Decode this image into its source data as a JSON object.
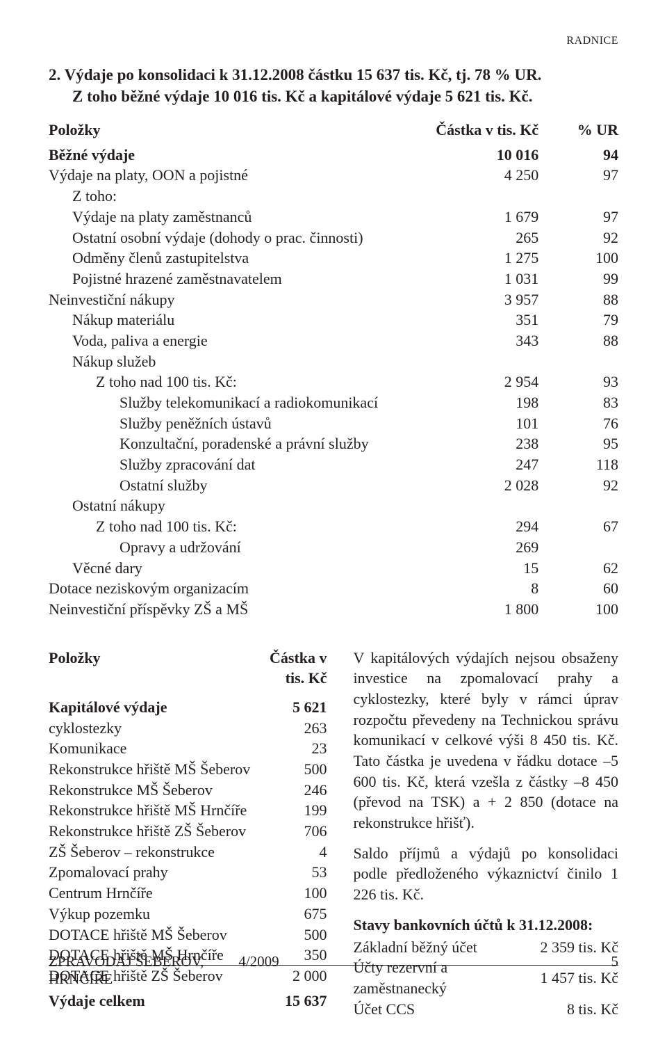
{
  "header": {
    "band": "RADNICE"
  },
  "intro": {
    "line1": "2. Výdaje po konsolidaci k 31.12.2008 částku 15 637 tis. Kč, tj. 78 % UR.",
    "line2": "Z toho běžné výdaje 10 016 tis. Kč a kapitálové výdaje 5 621 tis. Kč."
  },
  "table1": {
    "headers": {
      "polozky": "Položky",
      "castka": "Částka v tis. Kč",
      "pct": "% UR"
    },
    "rows": [
      {
        "label": "Běžné výdaje",
        "amount": "10 016",
        "pct": "94",
        "bold": true,
        "indent": 0
      },
      {
        "label": "Výdaje na platy, OON a pojistné",
        "amount": "4 250",
        "pct": "97",
        "indent": 0
      },
      {
        "label": "Z toho:",
        "amount": "",
        "pct": "",
        "indent": 1
      },
      {
        "label": "Výdaje na platy zaměstnanců",
        "amount": "1 679",
        "pct": "97",
        "indent": 1
      },
      {
        "label": "Ostatní osobní výdaje (dohody o prac. činnosti)",
        "amount": "265",
        "pct": "92",
        "indent": 1
      },
      {
        "label": "Odměny členů zastupitelstva",
        "amount": "1 275",
        "pct": "100",
        "indent": 1
      },
      {
        "label": "Pojistné hrazené zaměstnavatelem",
        "amount": "1 031",
        "pct": "99",
        "indent": 1
      },
      {
        "label": "Neinvestiční nákupy",
        "amount": "3 957",
        "pct": "88",
        "indent": 0
      },
      {
        "label": "Nákup materiálu",
        "amount": "351",
        "pct": "79",
        "indent": 1
      },
      {
        "label": "Voda, paliva a energie",
        "amount": "343",
        "pct": "88",
        "indent": 1
      },
      {
        "label": "Nákup služeb",
        "amount": "",
        "pct": "",
        "indent": 1
      },
      {
        "label": "Z toho nad 100 tis. Kč:",
        "amount": "2 954",
        "pct": "93",
        "indent": 2
      },
      {
        "label": "Služby telekomunikací a radiokomunikací",
        "amount": "198",
        "pct": "83",
        "indent": 3
      },
      {
        "label": "Služby peněžních ústavů",
        "amount": "101",
        "pct": "76",
        "indent": 3
      },
      {
        "label": "Konzultační, poradenské a právní služby",
        "amount": "238",
        "pct": "95",
        "indent": 3
      },
      {
        "label": "Služby zpracování dat",
        "amount": "247",
        "pct": "118",
        "indent": 3
      },
      {
        "label": "Ostatní služby",
        "amount": "2 028",
        "pct": "92",
        "indent": 3
      },
      {
        "label": "Ostatní nákupy",
        "amount": "",
        "pct": "",
        "indent": 1
      },
      {
        "label": "Z toho nad 100 tis. Kč:",
        "amount": "294",
        "pct": "67",
        "indent": 2
      },
      {
        "label": "Opravy a udržování",
        "amount": "269",
        "pct": "",
        "indent": 3
      },
      {
        "label": "Věcné dary",
        "amount": "15",
        "pct": "62",
        "indent": 1
      },
      {
        "label": "Dotace neziskovým organizacím",
        "amount": "8",
        "pct": "60",
        "indent": 0
      },
      {
        "label": "Neinvestiční příspěvky ZŠ a MŠ",
        "amount": "1 800",
        "pct": "100",
        "indent": 0
      }
    ]
  },
  "table2": {
    "headers": {
      "polozky": "Položky",
      "castka": "Částka v tis. Kč"
    },
    "rows": [
      {
        "label": "Kapitálové výdaje",
        "amount": "5 621",
        "bold": true
      },
      {
        "label": "cyklostezky",
        "amount": "263"
      },
      {
        "label": "Komunikace",
        "amount": "23"
      },
      {
        "label": "Rekonstrukce hřiště MŠ Šeberov",
        "amount": "500"
      },
      {
        "label": "Rekonstrukce MŠ Šeberov",
        "amount": "246"
      },
      {
        "label": "Rekonstrukce hřiště MŠ Hrnčíře",
        "amount": "199"
      },
      {
        "label": "Rekonstrukce hřiště ZŠ Šeberov",
        "amount": "706"
      },
      {
        "label": "ZŠ Šeberov – rekonstrukce",
        "amount": "4"
      },
      {
        "label": "Zpomalovací prahy",
        "amount": "53"
      },
      {
        "label": "Centrum Hrnčíře",
        "amount": "100"
      },
      {
        "label": "Výkup pozemku",
        "amount": "675"
      },
      {
        "label": "DOTACE hřiště MŠ Šeberov",
        "amount": "500"
      },
      {
        "label": "DOTACE hřiště MŠ Hrnčíře",
        "amount": "350"
      },
      {
        "label": "DOTACE hřiště ZŠ Šeberov",
        "amount": "2 000"
      },
      {
        "label": "Výdaje celkem",
        "amount": "15 637",
        "bold": true
      }
    ]
  },
  "right": {
    "para1": "V kapitálových výdajích nejsou obsaženy investice na zpomalovací prahy a cyklostezky, které byly v rámci úprav rozpočtu převedeny na Technickou správu komunikací v celkové výši 8 450 tis. Kč. Tato částka je uvedena v řádku dotace –5 600 tis. Kč, která vzešla z částky –8 450 (převod na TSK) a + 2 850 (dotace na rekonstrukce hřišť).",
    "para2": "Saldo příjmů a výdajů po konsolidaci podle předloženého výkaznictví činilo 1 226 tis. Kč.",
    "stavy_heading": "Stavy bankovních účtů k 31.12.2008:",
    "accounts": [
      {
        "label": "Základní běžný účet",
        "value": "2 359 tis. Kč"
      },
      {
        "label": "Účty rezervní a zaměstnanecký",
        "value": "1 457 tis. Kč"
      },
      {
        "label": "Účet CCS",
        "value": "8 tis. Kč"
      }
    ]
  },
  "footer": {
    "left": "ZPRAVODAJ ŠEBEROV, HRNČÍŘE",
    "center": "4/2009",
    "pagenum": "5"
  }
}
